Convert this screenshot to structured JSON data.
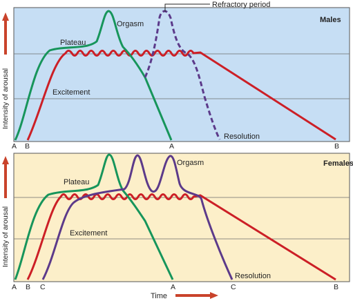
{
  "annotation": "Refractory period",
  "y_axis_label": "Intensity of arousal",
  "x_axis_label": "Time",
  "colors": {
    "male_bg": "#c6def4",
    "female_bg": "#fcefc9",
    "green": "#17955b",
    "red": "#cc1f26",
    "purple": "#5c3a8a",
    "arrow": "#c9432b"
  },
  "top": {
    "title": "Males",
    "phase_labels": {
      "excitement": "Excitement",
      "plateau": "Plateau",
      "orgasm": "Orgasm",
      "resolution": "Resolution"
    },
    "ticks": [
      "A",
      "B",
      "A",
      "B"
    ]
  },
  "bottom": {
    "title": "Females",
    "phase_labels": {
      "excitement": "Excitement",
      "plateau": "Plateau",
      "orgasm": "Orgasm",
      "resolution": "Resolution"
    },
    "ticks": [
      "A",
      "B",
      "C",
      "A",
      "C",
      "B"
    ]
  }
}
